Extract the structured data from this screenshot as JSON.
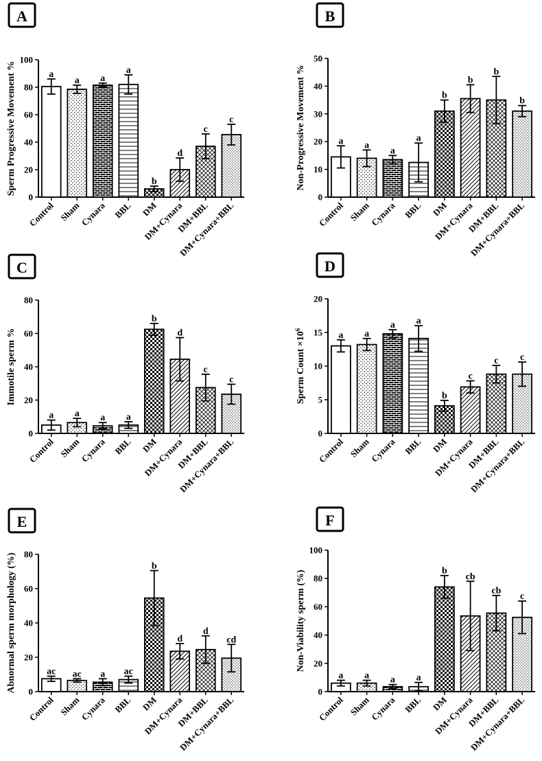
{
  "chart_data": [
    {
      "panel": "A",
      "type": "bar",
      "ylabel": "Sperm Progressive Movement %",
      "ylim": [
        0,
        100
      ],
      "yticks": [
        0,
        20,
        40,
        60,
        80,
        100
      ],
      "categories": [
        "Control",
        "Sham",
        "Cynara",
        "BBL",
        "DM",
        "DM+Cynara",
        "DM+BBL",
        "DM+Cynara+BBL"
      ],
      "values": [
        80.5,
        78.5,
        81.5,
        82,
        6,
        20,
        37,
        45.5
      ],
      "errors": [
        5.5,
        3,
        1.5,
        7,
        2,
        8.5,
        9,
        7.5
      ],
      "labels": [
        "a",
        "a",
        "a",
        "a",
        "b",
        "d",
        "c",
        "c"
      ]
    },
    {
      "panel": "B",
      "type": "bar",
      "ylabel": "Non-Progressive Movement %",
      "ylim": [
        0,
        50
      ],
      "yticks": [
        0,
        10,
        20,
        30,
        40,
        50
      ],
      "categories": [
        "Control",
        "Sham",
        "Cynara",
        "BBL",
        "DM",
        "DM+Cynara",
        "DM+BBL",
        "DM+Cynara+BBL"
      ],
      "values": [
        14.5,
        14,
        13.5,
        12.5,
        31,
        35.5,
        35,
        31
      ],
      "errors": [
        4,
        3,
        1.5,
        7,
        4,
        5,
        8.5,
        2
      ],
      "labels": [
        "a",
        "a",
        "a",
        "a",
        "b",
        "b",
        "b",
        "b"
      ]
    },
    {
      "panel": "C",
      "type": "bar",
      "ylabel": "Immotile sperm %",
      "ylim": [
        0,
        80
      ],
      "yticks": [
        0,
        20,
        40,
        60,
        80
      ],
      "categories": [
        "Control",
        "Sham",
        "Cynara",
        "BBL",
        "DM",
        "DM+Cynara",
        "DM+BBL",
        "DM+Cynara+BBL"
      ],
      "values": [
        5,
        6.5,
        4.5,
        5,
        62.5,
        44.5,
        27.5,
        23.5
      ],
      "errors": [
        3,
        2.5,
        2,
        2,
        3.5,
        13,
        8,
        6
      ],
      "labels": [
        "a",
        "a",
        "a",
        "a",
        "b",
        "d",
        "c",
        "c"
      ]
    },
    {
      "panel": "D",
      "type": "bar",
      "ylabel": "Sperm Count ×10",
      "ylabel_sup": "6",
      "ylim": [
        0,
        20
      ],
      "yticks": [
        0,
        5,
        10,
        15,
        20
      ],
      "categories": [
        "Control",
        "Sham",
        "Cynara",
        "BBL",
        "DM",
        "DM+Cynara",
        "DM+BBL",
        "DM+Cynara+BBL"
      ],
      "values": [
        13,
        13.2,
        14.8,
        14.1,
        4.1,
        6.9,
        8.8,
        8.8
      ],
      "errors": [
        0.9,
        0.9,
        0.6,
        1.9,
        0.8,
        0.9,
        1.3,
        1.8
      ],
      "labels": [
        "a",
        "a",
        "a",
        "a",
        "b",
        "c",
        "c",
        "c"
      ]
    },
    {
      "panel": "E",
      "type": "bar",
      "ylabel": "Abnormal sperm morphology (%)",
      "ylim": [
        0,
        80
      ],
      "yticks": [
        0,
        20,
        40,
        60,
        80
      ],
      "categories": [
        "Control",
        "Sham",
        "Cynara",
        "BBL",
        "DM",
        "DM+Cynara",
        "DM+BBL",
        "DM+Cynara+BBL"
      ],
      "values": [
        7.5,
        6.5,
        5.5,
        7,
        54.5,
        23.5,
        24.5,
        19.5
      ],
      "errors": [
        1.5,
        1,
        2,
        2,
        16,
        4.5,
        8,
        8
      ],
      "labels": [
        "ac",
        "ac",
        "a",
        "ac",
        "b",
        "d",
        "d",
        "cd"
      ]
    },
    {
      "panel": "F",
      "type": "bar",
      "ylabel": "Non-Viability sperm (%)",
      "ylim": [
        0,
        100
      ],
      "yticks": [
        0,
        20,
        40,
        60,
        80,
        100
      ],
      "categories": [
        "Control",
        "Sham",
        "Cynara",
        "BBL",
        "DM",
        "DM+Cynara",
        "DM+BBL",
        "DM+Cynara+BBL"
      ],
      "values": [
        6,
        6,
        3.5,
        3.5,
        74,
        53.5,
        55.5,
        52.5
      ],
      "errors": [
        2,
        2,
        1.5,
        3,
        8,
        24.5,
        12.5,
        11.5
      ],
      "labels": [
        "a",
        "a",
        "a",
        "a",
        "b",
        "cb",
        "cb",
        "c"
      ]
    }
  ]
}
